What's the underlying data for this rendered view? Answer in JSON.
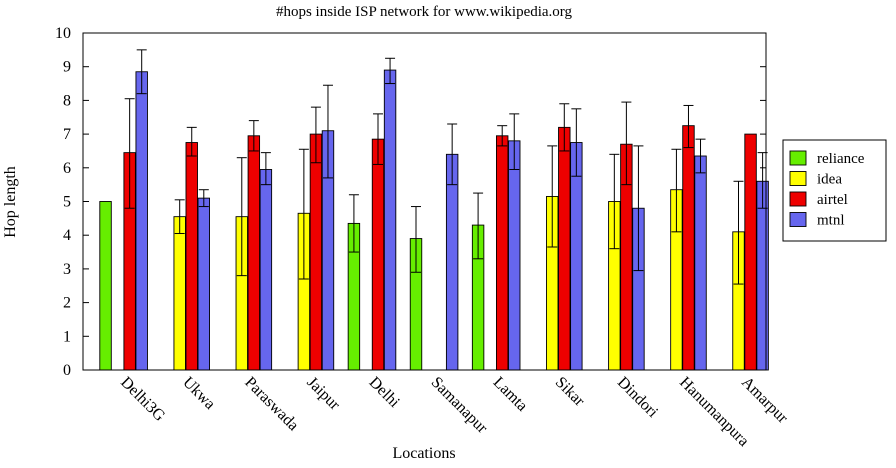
{
  "chart_data": {
    "type": "bar",
    "title": "#hops inside ISP network for www.wikipedia.org",
    "xlabel": "Locations",
    "ylabel": "Hop length",
    "ylim": [
      0,
      10
    ],
    "yticks": [
      "0",
      "1",
      "2",
      "3",
      "4",
      "5",
      "6",
      "7",
      "8",
      "9",
      "10"
    ],
    "grid": false,
    "legend_position": "right",
    "categories": [
      "Delhi3G",
      "Ukwa",
      "Paraswada",
      "Jaipur",
      "Delhi",
      "Samanapur",
      "Lamta",
      "Sikar",
      "Dindori",
      "Hanumanpura",
      "Amarpur"
    ],
    "series": [
      {
        "name": "reliance",
        "color": "#66ee00",
        "values": [
          5.0,
          null,
          null,
          null,
          4.35,
          3.9,
          4.3,
          null,
          null,
          null,
          null
        ],
        "err_low": [
          null,
          null,
          null,
          null,
          3.5,
          2.9,
          3.3,
          null,
          null,
          null,
          null
        ],
        "err_high": [
          null,
          null,
          null,
          null,
          5.2,
          4.85,
          5.25,
          null,
          null,
          null,
          null
        ]
      },
      {
        "name": "idea",
        "color": "#ffff00",
        "values": [
          null,
          4.55,
          4.55,
          4.65,
          null,
          null,
          null,
          5.15,
          5.0,
          5.35,
          4.1
        ],
        "err_low": [
          null,
          4.05,
          2.8,
          2.7,
          null,
          null,
          null,
          3.65,
          3.6,
          4.1,
          2.55
        ],
        "err_high": [
          null,
          5.05,
          6.3,
          6.55,
          null,
          null,
          null,
          6.65,
          6.4,
          6.55,
          5.6
        ]
      },
      {
        "name": "airtel",
        "color": "#ee0000",
        "values": [
          6.45,
          6.75,
          6.95,
          7.0,
          6.85,
          null,
          6.95,
          7.2,
          6.7,
          7.25,
          7.0
        ],
        "err_low": [
          4.8,
          6.35,
          6.5,
          6.15,
          6.1,
          null,
          6.65,
          6.5,
          5.5,
          6.6,
          null
        ],
        "err_high": [
          8.05,
          7.2,
          7.4,
          7.8,
          7.6,
          null,
          7.25,
          7.9,
          7.95,
          7.85,
          null
        ]
      },
      {
        "name": "mtnl",
        "color": "#6666ee",
        "values": [
          8.85,
          5.1,
          5.95,
          7.1,
          8.9,
          6.4,
          6.8,
          6.75,
          4.8,
          6.35,
          5.6
        ],
        "err_low": [
          8.2,
          4.85,
          5.5,
          5.7,
          8.5,
          5.5,
          5.95,
          5.75,
          2.95,
          5.85,
          4.8
        ],
        "err_high": [
          9.5,
          5.35,
          6.45,
          8.45,
          9.25,
          7.3,
          7.6,
          7.75,
          6.65,
          6.85,
          6.45
        ]
      }
    ]
  }
}
